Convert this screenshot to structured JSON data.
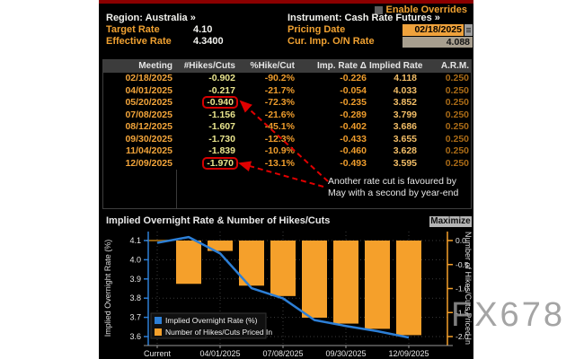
{
  "watermark": "FX678",
  "header": {
    "enable_overrides": "Enable Overrides",
    "region_label": "Region: Australia »",
    "instrument_label": "Instrument: Cash Rate Futures »",
    "target_rate_label": "Target Rate",
    "target_rate_value": "4.10",
    "effective_rate_label": "Effective Rate",
    "effective_rate_value": "4.3400",
    "pricing_date_label": "Pricing Date",
    "pricing_date_value": "02/18/2025",
    "cur_imp_label": "Cur. Imp. O/N Rate",
    "cur_imp_value": "4.088"
  },
  "table": {
    "columns": [
      "Meeting",
      "#Hikes/Cuts",
      "%Hike/Cut",
      "Imp. Rate Δ",
      "Implied Rate",
      "A.R.M."
    ],
    "rows": [
      [
        "02/18/2025",
        "-0.902",
        "-90.2%",
        "-0.226",
        "4.118",
        "0.250"
      ],
      [
        "04/01/2025",
        "-0.217",
        "-21.7%",
        "-0.054",
        "4.033",
        "0.250"
      ],
      [
        "05/20/2025",
        "-0.940",
        "-72.3%",
        "-0.235",
        "3.852",
        "0.250"
      ],
      [
        "07/08/2025",
        "-1.156",
        "-21.6%",
        "-0.289",
        "3.799",
        "0.250"
      ],
      [
        "08/12/2025",
        "-1.607",
        "-45.1%",
        "-0.402",
        "3.686",
        "0.250"
      ],
      [
        "09/30/2025",
        "-1.730",
        "-12.3%",
        "-0.433",
        "3.655",
        "0.250"
      ],
      [
        "11/04/2025",
        "-1.839",
        "-10.9%",
        "-0.460",
        "3.628",
        "0.250"
      ],
      [
        "12/09/2025",
        "-1.970",
        "-13.1%",
        "-0.493",
        "3.595",
        "0.250"
      ]
    ],
    "highlighted_rows": [
      2,
      7
    ]
  },
  "annotation": {
    "line1": "Another rate cut is favoured by",
    "line2": "May with a second by year-end"
  },
  "chart": {
    "title": "Implied Overnight Rate & Number of Hikes/Cuts",
    "maximize_label": "Maximize"
  },
  "chart_data": {
    "type": "line+bar",
    "title": "Implied Overnight Rate & Number of Hikes/Cuts",
    "categories": [
      "Current",
      "02/18/2025",
      "04/01/2025",
      "05/20/2025",
      "07/08/2025",
      "08/12/2025",
      "09/30/2025",
      "11/04/2025",
      "12/09/2025"
    ],
    "x_tick_indices": [
      0,
      2,
      4,
      6,
      8
    ],
    "series": [
      {
        "name": "Implied Overnight Rate (%)",
        "type": "line",
        "axis": "left",
        "color": "#2d7fd6",
        "values": [
          4.088,
          4.118,
          4.033,
          3.852,
          3.799,
          3.686,
          3.655,
          3.628,
          3.595
        ]
      },
      {
        "name": "Number of Hikes/Cuts Priced In",
        "type": "bar",
        "axis": "right",
        "color": "#f5a02b",
        "values": [
          0,
          -0.902,
          -0.217,
          -0.94,
          -1.156,
          -1.607,
          -1.73,
          -1.839,
          -1.97
        ]
      }
    ],
    "left_axis": {
      "label": "Implied Overnight Rate (%)",
      "min": 3.6,
      "max": 4.1,
      "ticks": [
        4.1,
        4.0,
        3.9,
        3.8,
        3.7,
        3.6
      ]
    },
    "right_axis": {
      "label": "Number of Hikes/Cuts Priced In",
      "min": -2.0,
      "max": 0.0,
      "ticks": [
        0.0,
        -0.5,
        -1.0,
        -1.5,
        -2.0
      ]
    },
    "legend_position": "bottom-left",
    "grid": true
  }
}
